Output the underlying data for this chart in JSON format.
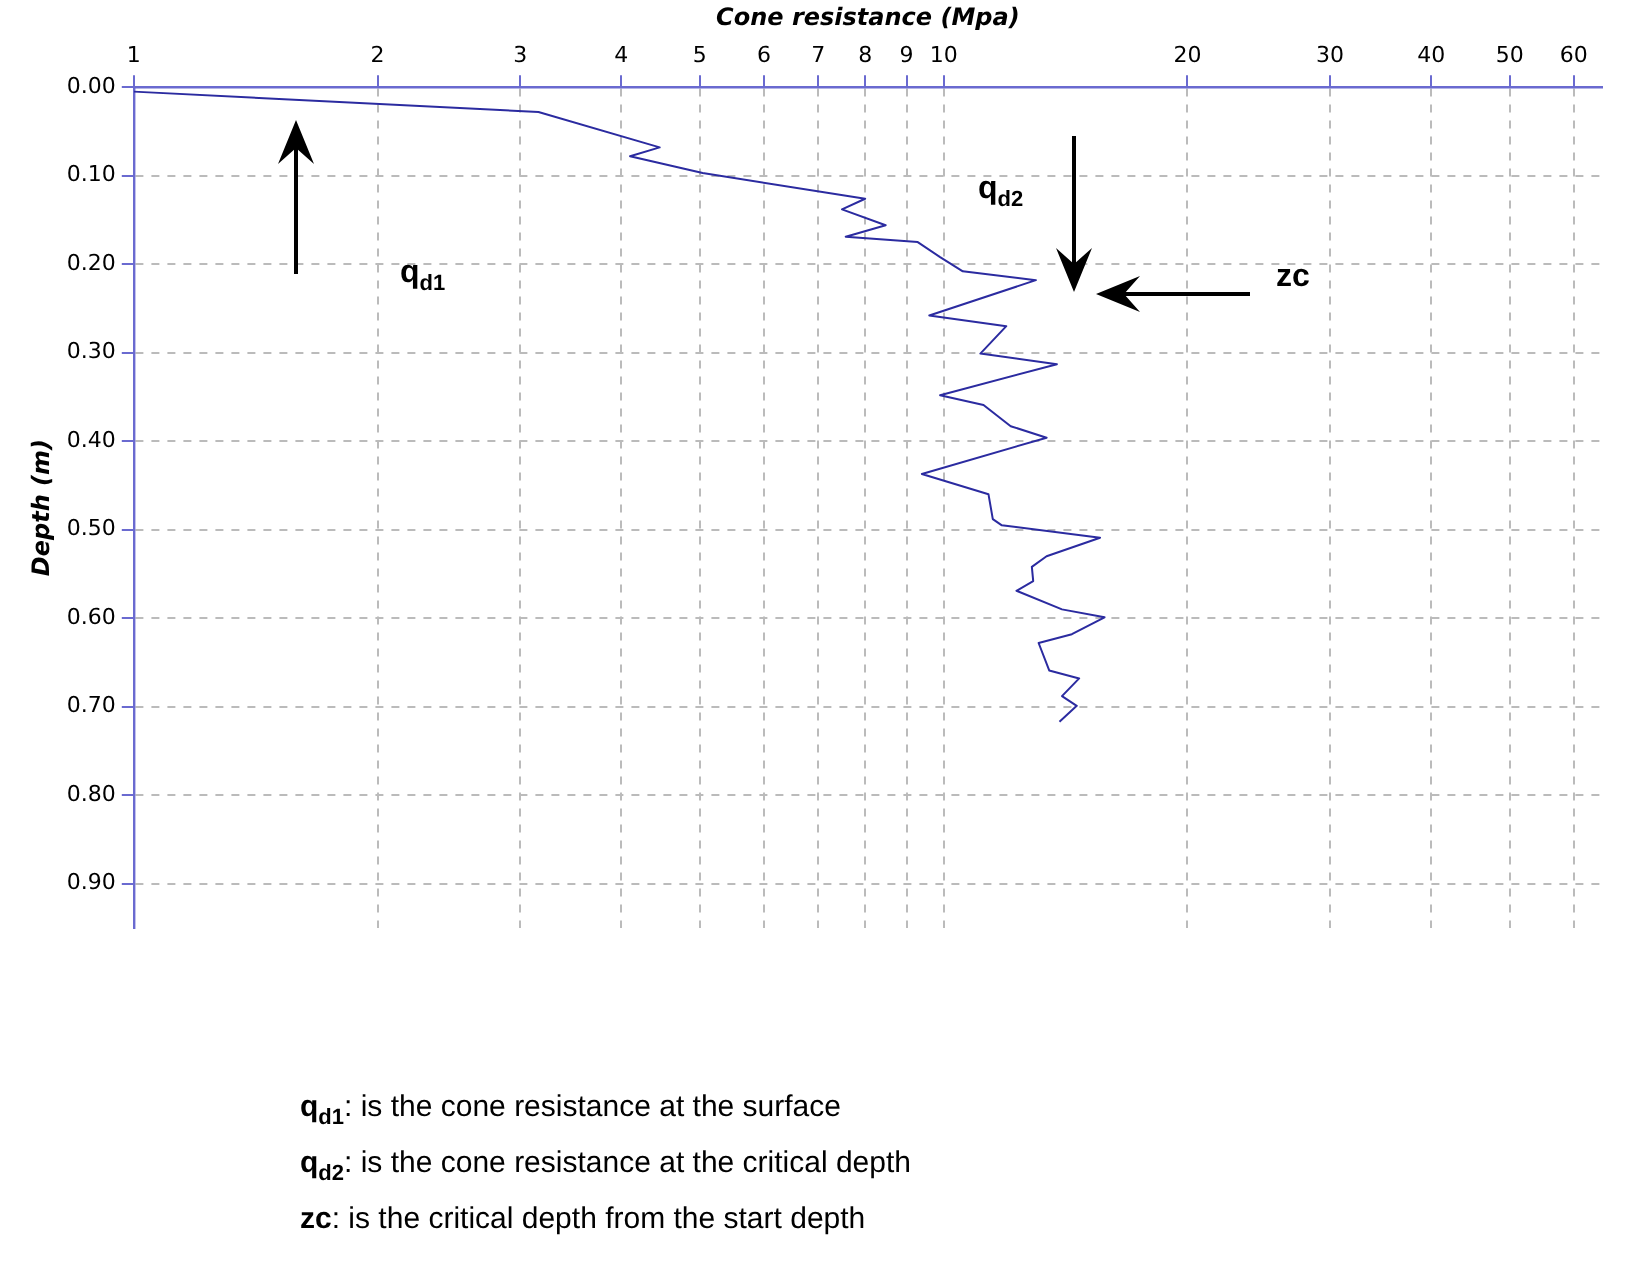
{
  "chart_data": {
    "type": "line",
    "xlabel": "Cone resistance (Mpa)",
    "ylabel": "Depth (m)",
    "x": [
      1,
      3.16,
      4.46,
      4.1,
      5.04,
      8.0,
      7.49,
      8.48,
      7.57,
      9.29,
      9.9,
      10.56,
      13.0,
      9.6,
      11.95,
      11.1,
      13.8,
      9.9,
      11.2,
      12.1,
      13.4,
      9.4,
      11.36,
      11.5,
      11.8,
      15.6,
      13.4,
      12.85,
      12.9,
      12.3,
      14.0,
      15.8,
      14.4,
      13.1,
      13.5,
      14.7,
      14.0,
      14.6,
      13.9
    ],
    "values": [
      0.005,
      0.028,
      0.068,
      0.078,
      0.097,
      0.126,
      0.138,
      0.156,
      0.169,
      0.175,
      0.192,
      0.208,
      0.218,
      0.258,
      0.27,
      0.301,
      0.313,
      0.348,
      0.359,
      0.383,
      0.396,
      0.437,
      0.46,
      0.488,
      0.495,
      0.509,
      0.53,
      0.542,
      0.558,
      0.569,
      0.59,
      0.599,
      0.618,
      0.628,
      0.659,
      0.668,
      0.688,
      0.699,
      0.717
    ],
    "color": "#2b2ba0",
    "log": "x",
    "xlim": [
      1,
      65
    ],
    "xticks": [
      1,
      2,
      3,
      4,
      5,
      6,
      7,
      8,
      9,
      10,
      20,
      30,
      40,
      50,
      60
    ],
    "ylim": [
      0.95,
      0
    ],
    "yticks": [
      {
        "value": 0,
        "label": "0.00"
      },
      {
        "value": 0.1,
        "label": "0.10"
      },
      {
        "value": 0.2,
        "label": "0.20"
      },
      {
        "value": 0.3,
        "label": "0.30"
      },
      {
        "value": 0.4,
        "label": "0.40"
      },
      {
        "value": 0.5,
        "label": "0.50"
      },
      {
        "value": 0.6,
        "label": "0.60"
      },
      {
        "value": 0.7,
        "label": "0.70"
      },
      {
        "value": 0.8,
        "label": "0.80"
      },
      {
        "value": 0.9,
        "label": "0.90"
      }
    ],
    "grid": true,
    "annotations": [
      "q$_{d1}$",
      "q$_{d2}$",
      "zc",
      "q$_{d1}$: is the cone resistance at the surface",
      "q$_{d2}$: is the cone resistance at the critical depth",
      "zc: is the critical depth from the start depth"
    ]
  }
}
